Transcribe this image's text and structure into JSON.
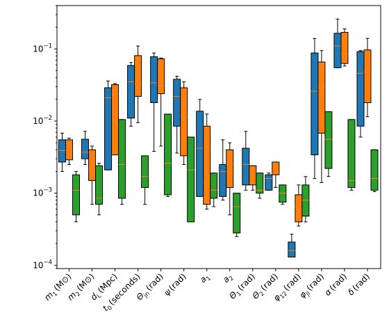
{
  "chart_data": {
    "type": "boxplot",
    "y_scale": "log",
    "ylim": [
      9e-05,
      0.4
    ],
    "y_ticks": [
      {
        "value": 0.0001,
        "base": "10",
        "exp": "−4"
      },
      {
        "value": 0.001,
        "base": "10",
        "exp": "−3"
      },
      {
        "value": 0.01,
        "base": "10",
        "exp": "−2"
      },
      {
        "value": 0.1,
        "base": "10",
        "exp": "−1"
      }
    ],
    "categories": [
      {
        "sym": "m",
        "sub": "1",
        "unit": "(M⊙)"
      },
      {
        "sym": "m",
        "sub": "2",
        "unit": "(M⊙)"
      },
      {
        "sym": "d",
        "sub": "L",
        "unit": "(Mpc)"
      },
      {
        "sym": "t",
        "sub": "0",
        "unit": "(seconds)"
      },
      {
        "sym": "Θ",
        "sub": "jn",
        "unit": "(rad)"
      },
      {
        "sym": "ψ",
        "sub": "",
        "unit": "(rad)"
      },
      {
        "sym": "a",
        "sub": "1",
        "unit": ""
      },
      {
        "sym": "a",
        "sub": "2",
        "unit": ""
      },
      {
        "sym": "Θ",
        "sub": "1",
        "unit": "(rad)"
      },
      {
        "sym": "Θ",
        "sub": "2",
        "unit": "(rad)"
      },
      {
        "sym": "φ",
        "sub": "12",
        "unit": "(rad)"
      },
      {
        "sym": "φ",
        "sub": "jl",
        "unit": "(rad)"
      },
      {
        "sym": "α",
        "sub": "",
        "unit": "(rad)"
      },
      {
        "sym": "δ",
        "sub": "",
        "unit": "(rad)"
      }
    ],
    "series": [
      {
        "color": "#1f77b4",
        "boxes": [
          [
            0.002,
            0.0027,
            0.0039,
            0.0055,
            0.0068
          ],
          [
            0.0025,
            0.003,
            0.0037,
            0.0056,
            0.0072
          ],
          [
            0.0021,
            0.0021,
            0.021,
            0.029,
            0.036
          ],
          [
            0.0085,
            0.011,
            0.035,
            0.059,
            0.065
          ],
          [
            0.0038,
            0.018,
            0.034,
            0.078,
            0.088
          ],
          [
            0.0036,
            0.0085,
            0.022,
            0.038,
            0.042
          ],
          [
            0.0009,
            0.0009,
            0.0042,
            0.0137,
            0.02
          ],
          [
            0.0008,
            0.0009,
            0.002,
            0.0025,
            0.0055
          ],
          [
            0.0011,
            0.0013,
            0.0025,
            0.0042,
            0.0072
          ],
          [
            0.0011,
            0.0011,
            0.0016,
            0.0018,
            0.0019
          ],
          [
            0.00013,
            0.00013,
            0.00016,
            0.00021,
            0.00027
          ],
          [
            0.0016,
            0.0034,
            0.026,
            0.088,
            0.14
          ],
          [
            0.055,
            0.055,
            0.11,
            0.165,
            0.26
          ],
          [
            0.006,
            0.0085,
            0.046,
            0.092,
            0.095
          ]
        ]
      },
      {
        "color": "#ff7f0e",
        "boxes": [
          [
            0.0025,
            0.0029,
            0.004,
            0.0055,
            0.0058
          ],
          [
            0.0007,
            0.0015,
            0.0021,
            0.004,
            0.0045
          ],
          [
            0.0034,
            0.0034,
            0.024,
            0.032,
            0.033
          ],
          [
            0.0095,
            0.022,
            0.033,
            0.081,
            0.11
          ],
          [
            0.0045,
            0.024,
            0.031,
            0.073,
            0.075
          ],
          [
            0.0025,
            0.0033,
            0.0115,
            0.029,
            0.035
          ],
          [
            0.0006,
            0.0007,
            0.0014,
            0.0085,
            0.0125
          ],
          [
            0.0005,
            0.0012,
            0.0025,
            0.004,
            0.005
          ],
          [
            0.0011,
            0.0013,
            0.0014,
            0.0024,
            0.0024
          ],
          [
            0.0012,
            0.0018,
            0.0019,
            0.0027,
            0.0027
          ],
          [
            0.00035,
            0.0004,
            0.00065,
            0.00095,
            0.0013
          ],
          [
            0.0014,
            0.0068,
            0.03,
            0.066,
            0.095
          ],
          [
            0.058,
            0.063,
            0.085,
            0.17,
            0.19
          ],
          [
            0.0115,
            0.018,
            0.048,
            0.097,
            0.14
          ]
        ]
      },
      {
        "color": "#2ca02c",
        "boxes": [
          [
            0.0004,
            0.0005,
            0.0011,
            0.0018,
            0.002
          ],
          [
            0.0005,
            0.0007,
            0.00085,
            0.0024,
            0.0026
          ],
          [
            0.0007,
            0.00085,
            0.0025,
            0.0105,
            0.0105
          ],
          [
            0.0007,
            0.0012,
            0.0017,
            0.0033,
            0.0033
          ],
          [
            0.0009,
            0.00095,
            0.0026,
            0.0125,
            0.0125
          ],
          [
            0.0004,
            0.0004,
            0.0021,
            0.006,
            0.006
          ],
          [
            0.00065,
            0.00085,
            0.0011,
            0.0019,
            0.0019
          ],
          [
            0.00025,
            0.00028,
            0.00065,
            0.001,
            0.001
          ],
          [
            0.00085,
            0.001,
            0.0011,
            0.0019,
            0.0019
          ],
          [
            0.0007,
            0.00075,
            0.001,
            0.0013,
            0.0013
          ],
          [
            0.0004,
            0.00048,
            0.0008,
            0.0013,
            0.0017
          ],
          [
            0.0017,
            0.0022,
            0.0056,
            0.0135,
            0.0135
          ],
          [
            0.0011,
            0.0012,
            0.0015,
            0.0105,
            0.0105
          ],
          [
            0.00105,
            0.0011,
            0.0016,
            0.004,
            0.004
          ]
        ]
      }
    ]
  }
}
